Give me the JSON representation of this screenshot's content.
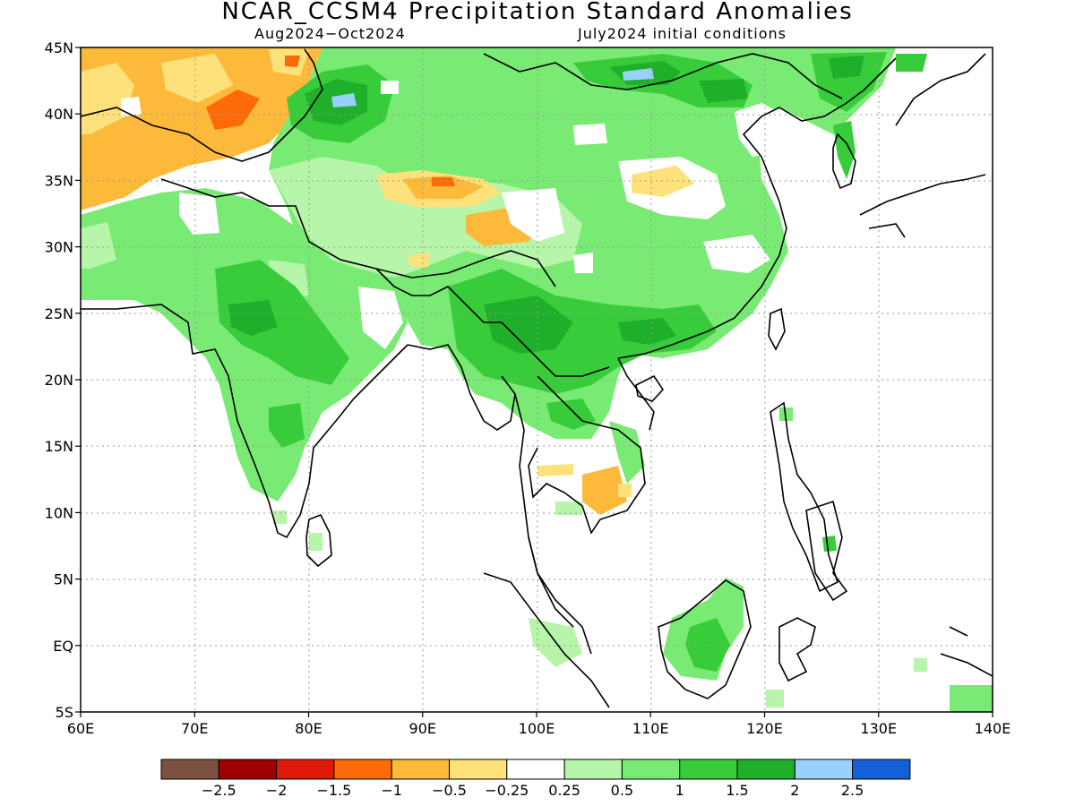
{
  "title": "NCAR_CCSM4 Precipitation Standard Anomalies",
  "subtitle_left": "Aug2024−Oct2024",
  "subtitle_right": "July2024 initial conditions",
  "map": {
    "lon_range": [
      60,
      140
    ],
    "lat_range": [
      -5,
      45
    ],
    "gridlines": "dotted",
    "lat_labels": [
      "45N",
      "40N",
      "35N",
      "30N",
      "25N",
      "20N",
      "15N",
      "10N",
      "5N",
      "EQ",
      "5S"
    ],
    "lon_labels": [
      "60E",
      "70E",
      "80E",
      "90E",
      "100E",
      "110E",
      "120E",
      "130E",
      "140E"
    ]
  },
  "colorbar": {
    "colors": [
      "#7b5141",
      "#a00000",
      "#e01a0a",
      "#fd6a08",
      "#fdb93a",
      "#fde17a",
      "#ffffff",
      "#b6f5aa",
      "#79ea73",
      "#38cc3b",
      "#1faf2a",
      "#96d2fa",
      "#1560d8"
    ],
    "labels": [
      "−2.5",
      "−2",
      "−1.5",
      "−1",
      "−0.5",
      "−0.25",
      "0.25",
      "0.5",
      "1",
      "1.5",
      "2",
      "2.5"
    ]
  }
}
